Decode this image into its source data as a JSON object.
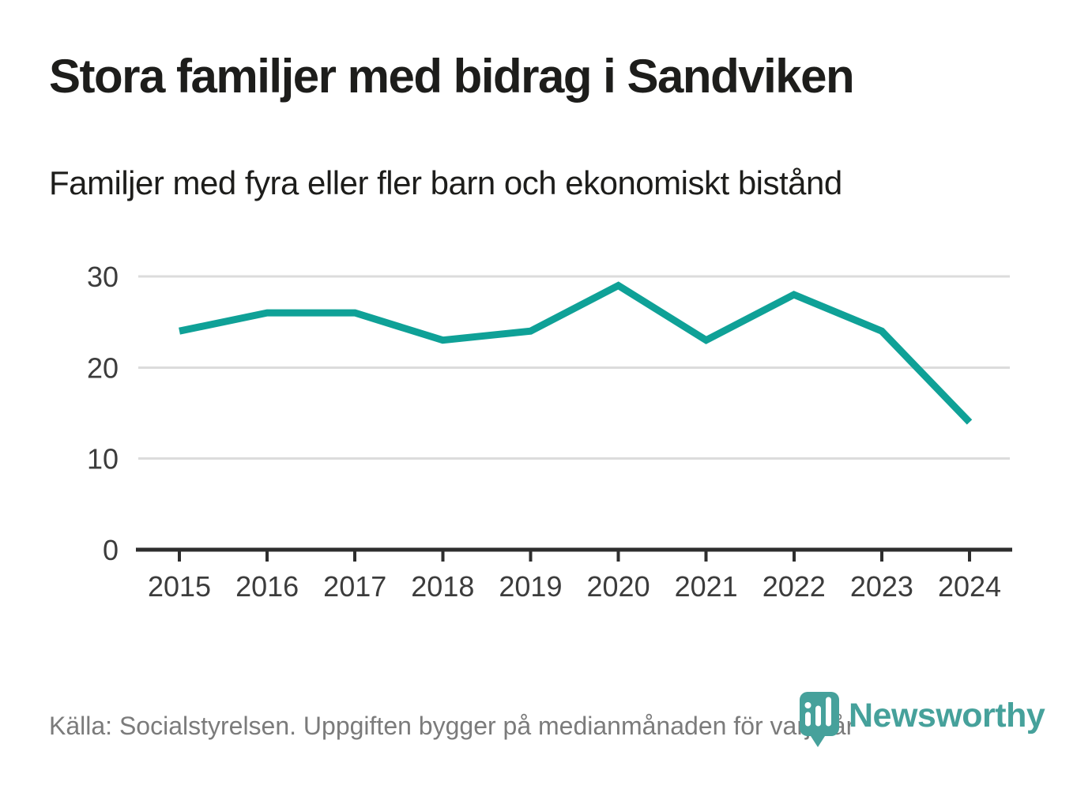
{
  "header": {
    "title": "Stora familjer med bidrag i Sandviken",
    "subtitle": "Familjer med fyra eller fler barn och ekonomiskt bistånd"
  },
  "footer": {
    "source": "Källa: Socialstyrelsen. Uppgiften bygger på medianmånaden för varje år",
    "logo_text": "Newsworthy"
  },
  "colors": {
    "line": "#0fa197",
    "gridline": "#dcdcdc",
    "axis": "#2e2e2e",
    "tick_label": "#3c3c3c",
    "title_text": "#1d1d1b",
    "source_text": "#7b7b7b",
    "logo_teal": "#46a19b",
    "background": "#ffffff"
  },
  "chart_data": {
    "type": "line",
    "title": "Stora familjer med bidrag i Sandviken",
    "subtitle": "Familjer med fyra eller fler barn och ekonomiskt bistånd",
    "categories": [
      "2015",
      "2016",
      "2017",
      "2018",
      "2019",
      "2020",
      "2021",
      "2022",
      "2023",
      "2024"
    ],
    "series": [
      {
        "name": "Familjer med fyra eller fler barn och ekonomiskt bistånd",
        "values": [
          24,
          26,
          26,
          23,
          24,
          29,
          23,
          28,
          24,
          14
        ]
      }
    ],
    "xlabel": "",
    "ylabel": "",
    "ylim": [
      0,
      30
    ],
    "yticks": [
      0,
      10,
      20,
      30
    ],
    "grid": true,
    "legend": false,
    "line_color": "#0fa197"
  }
}
